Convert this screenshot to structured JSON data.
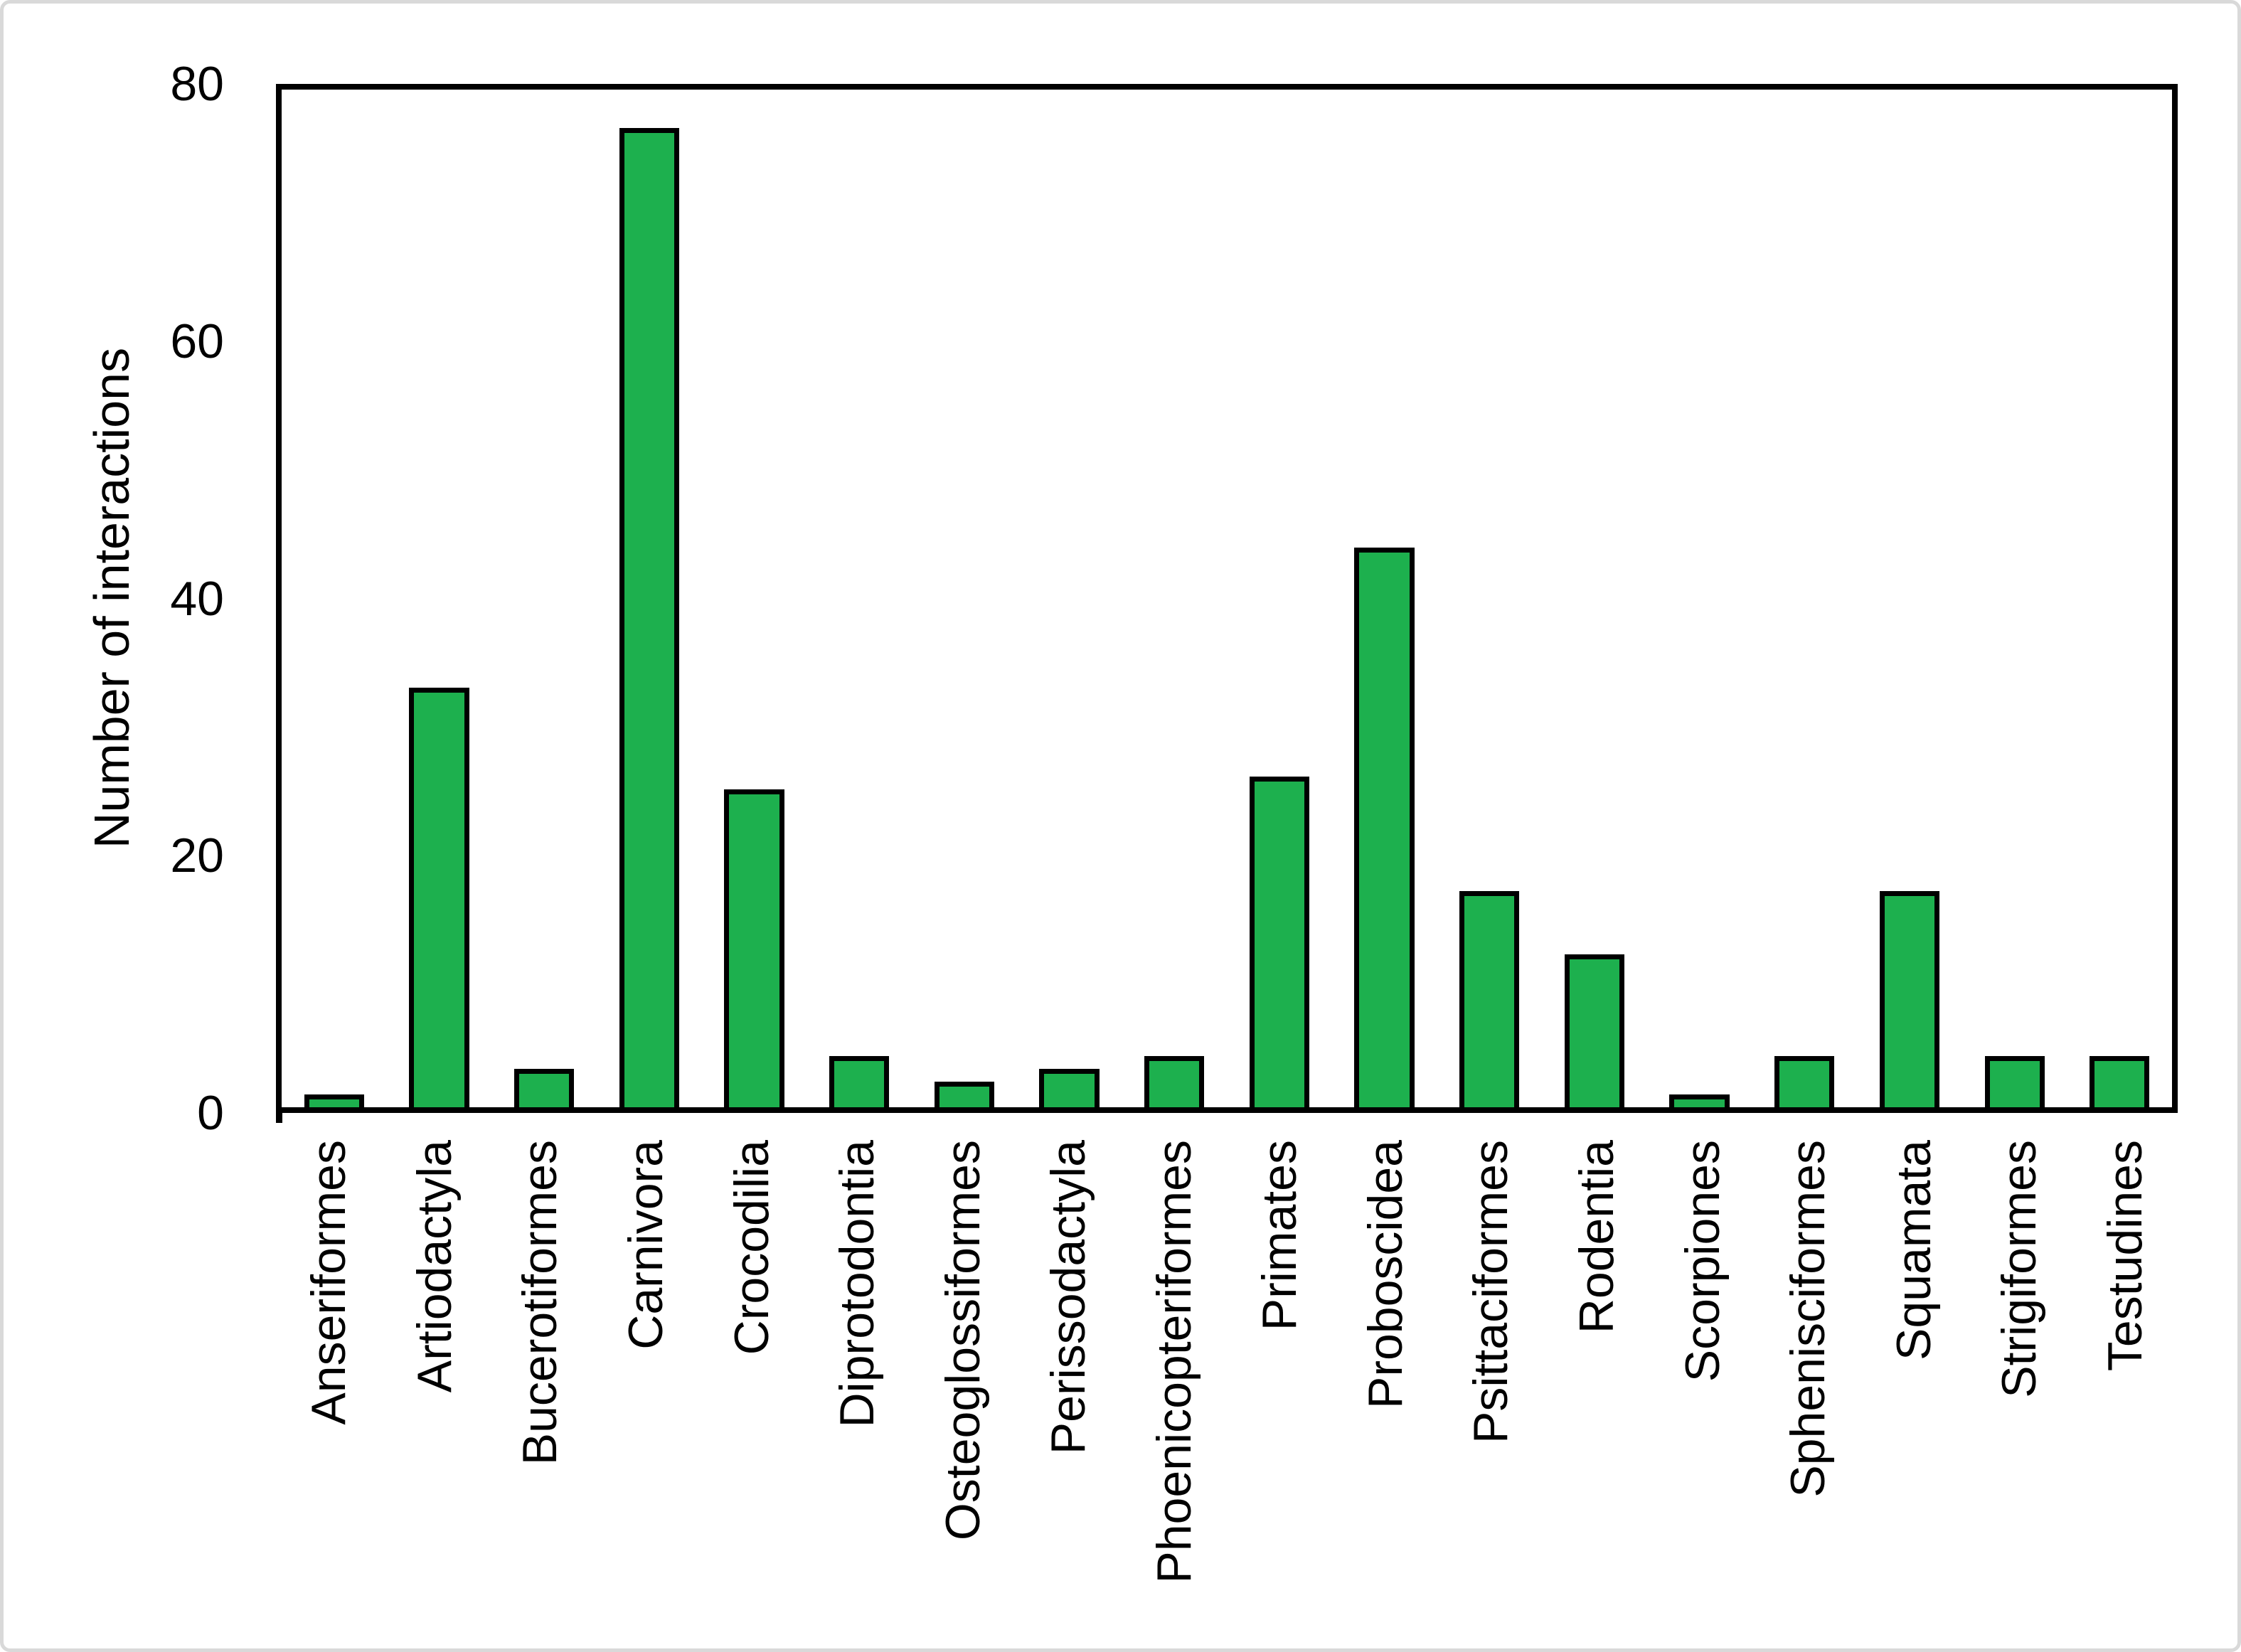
{
  "chart_data": {
    "type": "bar",
    "title": "",
    "ylabel": "Number of interactions",
    "xlabel": "",
    "ylim": [
      0,
      80
    ],
    "yticks": [
      0,
      20,
      40,
      60,
      80
    ],
    "grid": false,
    "legend": null,
    "categories": [
      "Anseriformes",
      "Artiodactyla",
      "Bucerotiformes",
      "Carnivora",
      "Crocodilia",
      "Diprotodontia",
      "Osteoglossiformes",
      "Perissodactyla",
      "Phoenicopteriformes",
      "Primates",
      "Proboscidea",
      "Psittaciformes",
      "Rodentia",
      "Scorpiones",
      "Sphenisciformes",
      "Squamata",
      "Strigiformes",
      "Testudines"
    ],
    "values": [
      1,
      33,
      3,
      77,
      25,
      4,
      2,
      3,
      4,
      26,
      44,
      17,
      12,
      1,
      4,
      17,
      4,
      4
    ],
    "colors": {
      "bar_fill": "#1DB04E",
      "bar_border": "#000000",
      "axis": "#000000",
      "text": "#000000",
      "frame_border": "#D9D9D9",
      "background": "#FFFFFF"
    }
  }
}
